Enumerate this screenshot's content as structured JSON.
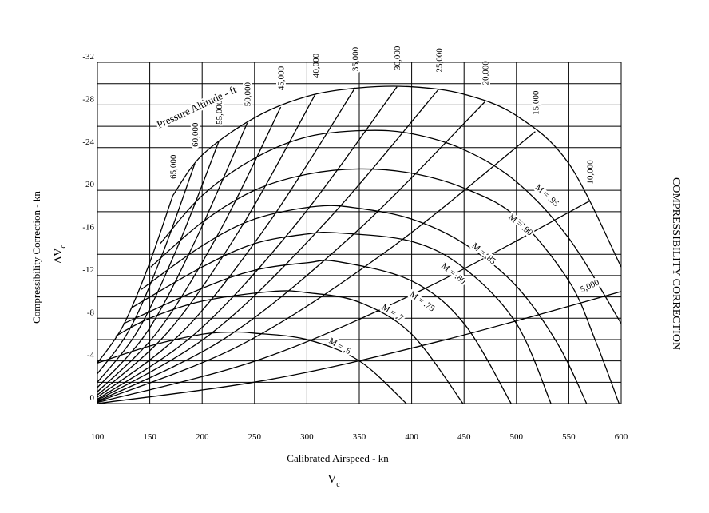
{
  "chart_data": {
    "type": "line",
    "title": "COMPRESSIBILITY CORRECTION",
    "xlabel": "Calibrated Airspeed - kn",
    "x_symbol": {
      "main": "V",
      "sub": "c"
    },
    "ylabel": "Compressibility Correction - kn",
    "y_symbol": {
      "main": "ΔV",
      "sub": "c"
    },
    "annotation": "Pressure Altitude - ft",
    "xlim": [
      100,
      600
    ],
    "ylim": [
      0,
      -32
    ],
    "xticks": [
      100,
      150,
      200,
      250,
      300,
      350,
      400,
      450,
      500,
      550,
      600
    ],
    "yticks": [
      0,
      -4,
      -8,
      -12,
      -16,
      -20,
      -24,
      -28,
      -32
    ],
    "y_minor_grid": [
      -2,
      -6,
      -10,
      -14,
      -18,
      -22,
      -26,
      -30
    ],
    "grid": true,
    "color": "#000000",
    "series": [
      {
        "name": "65,000",
        "kind": "altitude",
        "x": [
          100,
          124,
          148,
          172
        ],
        "values": [
          -3.8,
          -7.2,
          -12.7,
          -19.5
        ]
      },
      {
        "name": "60,000",
        "kind": "altitude",
        "x": [
          100,
          131,
          162,
          193
        ],
        "values": [
          -2.8,
          -7.0,
          -14.0,
          -22.5
        ]
      },
      {
        "name": "55,000",
        "kind": "altitude",
        "x": [
          100,
          139,
          177,
          216
        ],
        "values": [
          -2.0,
          -6.9,
          -14.8,
          -24.6
        ]
      },
      {
        "name": "50,000",
        "kind": "altitude",
        "x": [
          100,
          148,
          195,
          243
        ],
        "values": [
          -1.5,
          -6.8,
          -15.6,
          -26.3
        ]
      },
      {
        "name": "45,000",
        "kind": "altitude",
        "x": [
          100,
          158,
          217,
          275
        ],
        "values": [
          -1.1,
          -6.8,
          -16.2,
          -27.8
        ]
      },
      {
        "name": "40,000",
        "kind": "altitude",
        "x": [
          100,
          169,
          239,
          308
        ],
        "values": [
          -0.8,
          -6.9,
          -16.8,
          -29.0
        ]
      },
      {
        "name": "35,000",
        "kind": "altitude",
        "x": [
          100,
          182,
          264,
          346
        ],
        "values": [
          -0.6,
          -6.8,
          -17.0,
          -29.6
        ]
      },
      {
        "name": "30,000",
        "kind": "altitude",
        "x": [
          100,
          195,
          291,
          386
        ],
        "values": [
          -0.4,
          -6.7,
          -17.0,
          -29.7
        ]
      },
      {
        "name": "25,000",
        "kind": "altitude",
        "x": [
          100,
          209,
          317,
          426
        ],
        "values": [
          -0.3,
          -6.6,
          -16.9,
          -29.5
        ]
      },
      {
        "name": "20,000",
        "kind": "altitude",
        "x": [
          100,
          223,
          347,
          470
        ],
        "values": [
          -0.2,
          -6.2,
          -16.1,
          -28.3
        ]
      },
      {
        "name": "15,000",
        "kind": "altitude",
        "x": [
          100,
          239,
          379,
          518
        ],
        "values": [
          -0.15,
          -5.6,
          -14.5,
          -25.5
        ]
      },
      {
        "name": "10,000",
        "kind": "altitude",
        "x": [
          100,
          257,
          413,
          570
        ],
        "values": [
          -0.1,
          -4.2,
          -10.8,
          -19.0
        ]
      },
      {
        "name": "5,000",
        "kind": "altitude",
        "x": [
          100,
          267,
          433,
          600
        ],
        "values": [
          0,
          -2.3,
          -6.0,
          -10.5
        ]
      },
      {
        "kind": "mach",
        "x": [
          172,
          200,
          250,
          300,
          350,
          400,
          450,
          500,
          550,
          600
        ],
        "values": [
          -19.5,
          -23.3,
          -26.8,
          -28.8,
          -29.6,
          -29.7,
          -29.0,
          -27.0,
          -22.5,
          -12.8
        ]
      },
      {
        "name": "M = .95",
        "kind": "mach",
        "x": [
          160,
          200,
          250,
          300,
          355,
          400,
          450,
          500,
          550,
          600
        ],
        "values": [
          -15,
          -19.5,
          -23,
          -25,
          -25.6,
          -25.3,
          -23.8,
          -20.8,
          -15.5,
          -7.5
        ]
      },
      {
        "name": "M = .90",
        "kind": "mach",
        "x": [
          151,
          200,
          250,
          300,
          350,
          400,
          450,
          500,
          550,
          575,
          598
        ],
        "values": [
          -12.8,
          -17,
          -20,
          -21.5,
          -22,
          -21.6,
          -20.2,
          -17.5,
          -11.5,
          -6,
          0
        ]
      },
      {
        "name": "M = .85",
        "kind": "mach",
        "x": [
          142,
          200,
          250,
          310,
          350,
          400,
          450,
          500,
          540,
          567
        ],
        "values": [
          -10.7,
          -14.8,
          -17.3,
          -18.5,
          -18.3,
          -17.3,
          -15,
          -11,
          -5.5,
          0
        ]
      },
      {
        "name": "M = .80",
        "kind": "mach",
        "x": [
          133,
          200,
          250,
          300,
          330,
          400,
          450,
          500,
          533
        ],
        "values": [
          -9,
          -12.8,
          -15,
          -15.9,
          -16,
          -15.2,
          -12.7,
          -7.5,
          0
        ]
      },
      {
        "name": "M = .75",
        "kind": "mach",
        "x": [
          125,
          200,
          250,
          300,
          330,
          400,
          450,
          495
        ],
        "values": [
          -7.5,
          -10.8,
          -12.5,
          -13.2,
          -13.3,
          -11.5,
          -7.5,
          0
        ]
      },
      {
        "name": "M = .7",
        "kind": "mach",
        "x": [
          117,
          150,
          200,
          266,
          300,
          350,
          400,
          449
        ],
        "values": [
          -6.3,
          -8,
          -9.6,
          -10.5,
          -10.4,
          -9.5,
          -6.5,
          0
        ]
      },
      {
        "name": "M = .6",
        "kind": "mach",
        "x": [
          100,
          150,
          200,
          228,
          250,
          300,
          350,
          395
        ],
        "values": [
          -3.8,
          -5.4,
          -6.5,
          -6.7,
          -6.6,
          -6,
          -4,
          0
        ]
      }
    ]
  }
}
